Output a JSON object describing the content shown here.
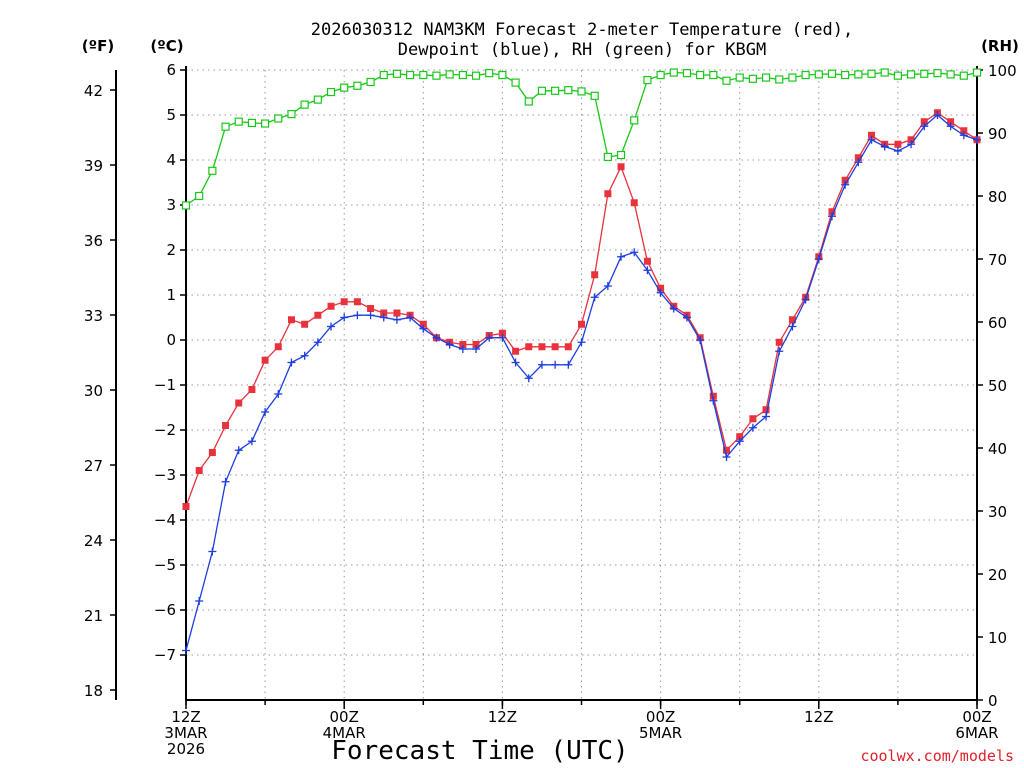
{
  "chart_data": {
    "type": "line",
    "title_line1": "2026030312 NAM3KM Forecast 2-meter Temperature (red),",
    "title_line2": "Dewpoint (blue), RH (green) for KBGM",
    "xlabel": "Forecast Time (UTC)",
    "credit": "coolwx.com/models",
    "units": {
      "fahrenheit": "(ºF)",
      "celsius": "(ºC)",
      "rh": "(RH)"
    },
    "colors": {
      "temperature": "#e8323c",
      "dewpoint": "#1c3ee0",
      "rh": "#18c818",
      "grid": "#9a9a9a"
    },
    "grid": true,
    "celsius_axis": {
      "ylim": [
        -8,
        6
      ],
      "ticks": [
        -7,
        -6,
        -5,
        -4,
        -3,
        -2,
        -1,
        0,
        1,
        2,
        3,
        4,
        5,
        6
      ],
      "tick_labels": [
        "−7",
        "−6",
        "−5",
        "−4",
        "−3",
        "−2",
        "−1",
        "0",
        "1",
        "2",
        "3",
        "4",
        "5",
        "6"
      ]
    },
    "fahrenheit_axis": {
      "ticks": [
        18,
        21,
        24,
        27,
        30,
        33,
        36,
        39,
        42
      ]
    },
    "rh_axis": {
      "ylim": [
        0,
        100
      ],
      "ticks": [
        0,
        10,
        20,
        30,
        40,
        50,
        60,
        70,
        80,
        90,
        100
      ]
    },
    "x_axis": {
      "range_hours": [
        0,
        60
      ],
      "ticks": [
        {
          "hour": 0,
          "lines": [
            "12Z",
            "3MAR",
            "2026"
          ]
        },
        {
          "hour": 12,
          "lines": [
            "00Z",
            "4MAR"
          ]
        },
        {
          "hour": 24,
          "lines": [
            "12Z"
          ]
        },
        {
          "hour": 36,
          "lines": [
            "00Z",
            "5MAR"
          ]
        },
        {
          "hour": 48,
          "lines": [
            "12Z"
          ]
        },
        {
          "hour": 60,
          "lines": [
            "00Z",
            "6MAR"
          ]
        }
      ]
    },
    "hours": [
      0,
      1,
      2,
      3,
      4,
      5,
      6,
      7,
      8,
      9,
      10,
      11,
      12,
      13,
      14,
      15,
      16,
      17,
      18,
      19,
      20,
      21,
      22,
      23,
      24,
      25,
      26,
      27,
      28,
      29,
      30,
      31,
      32,
      33,
      34,
      35,
      36,
      37,
      38,
      39,
      40,
      41,
      42,
      43,
      44,
      45,
      46,
      47,
      48,
      49,
      50,
      51,
      52,
      53,
      54,
      55,
      56,
      57,
      58,
      59,
      60
    ],
    "series": [
      {
        "name": "Temperature",
        "axis": "celsius",
        "values": [
          -3.7,
          -2.9,
          -2.5,
          -1.9,
          -1.4,
          -1.1,
          -0.45,
          -0.15,
          0.45,
          0.35,
          0.55,
          0.75,
          0.85,
          0.85,
          0.7,
          0.6,
          0.6,
          0.55,
          0.35,
          0.05,
          -0.05,
          -0.1,
          -0.1,
          0.1,
          0.15,
          -0.25,
          -0.15,
          -0.15,
          -0.15,
          -0.15,
          0.35,
          1.45,
          3.25,
          3.85,
          3.05,
          1.75,
          1.15,
          0.75,
          0.55,
          0.05,
          -1.25,
          -2.45,
          -2.15,
          -1.75,
          -1.55,
          -0.05,
          0.45,
          0.95,
          1.85,
          2.85,
          3.55,
          4.05,
          4.55,
          4.35,
          4.35,
          4.45,
          4.85,
          5.05,
          4.85,
          4.65,
          4.45
        ]
      },
      {
        "name": "Dewpoint",
        "axis": "celsius",
        "values": [
          -6.9,
          -5.8,
          -4.7,
          -3.15,
          -2.45,
          -2.25,
          -1.6,
          -1.2,
          -0.5,
          -0.35,
          -0.05,
          0.3,
          0.5,
          0.55,
          0.55,
          0.5,
          0.45,
          0.5,
          0.25,
          0.05,
          -0.1,
          -0.2,
          -0.2,
          0.05,
          0.05,
          -0.5,
          -0.85,
          -0.55,
          -0.55,
          -0.55,
          -0.05,
          0.95,
          1.2,
          1.85,
          1.95,
          1.55,
          1.05,
          0.7,
          0.5,
          0.0,
          -1.35,
          -2.6,
          -2.25,
          -1.95,
          -1.7,
          -0.25,
          0.3,
          0.9,
          1.8,
          2.75,
          3.45,
          3.95,
          4.45,
          4.3,
          4.2,
          4.35,
          4.75,
          5.0,
          4.75,
          4.55,
          4.45
        ]
      },
      {
        "name": "RH",
        "axis": "rh",
        "values": [
          78.5,
          80,
          84,
          91,
          91.8,
          91.6,
          91.5,
          92.3,
          93,
          94.5,
          95.3,
          96.5,
          97.2,
          97.5,
          98.1,
          99.2,
          99.4,
          99.2,
          99.2,
          99.1,
          99.3,
          99.2,
          99.1,
          99.5,
          99.2,
          98.0,
          95.0,
          96.7,
          96.7,
          96.8,
          96.6,
          95.9,
          86.2,
          86.5,
          92,
          98.4,
          99.2,
          99.6,
          99.5,
          99.2,
          99.2,
          98.3,
          98.8,
          98.6,
          98.8,
          98.5,
          98.8,
          99.2,
          99.3,
          99.4,
          99.2,
          99.3,
          99.4,
          99.6,
          99.1,
          99.3,
          99.4,
          99.5,
          99.3,
          99.1,
          99.6
        ]
      }
    ]
  }
}
